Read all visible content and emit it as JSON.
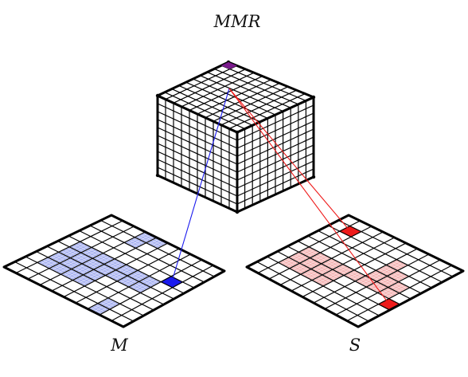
{
  "labels": {
    "top": "MMR",
    "left": "M",
    "right": "S"
  },
  "grid_size": 10,
  "colors": {
    "ink": "#000000",
    "blue": "#1a1aee",
    "blue_fill": "#a9b3f1",
    "red": "#ee1a1a",
    "red_fill": "#f4b5b5",
    "cube_marker": "#7a1a8c"
  },
  "left_plane": {
    "name": "M",
    "highlighted_cells": [
      [
        3,
        0
      ],
      [
        4,
        0
      ],
      [
        3,
        1
      ],
      [
        1,
        4
      ],
      [
        2,
        4
      ],
      [
        3,
        4
      ],
      [
        4,
        4
      ],
      [
        5,
        4
      ],
      [
        6,
        4
      ],
      [
        7,
        4
      ],
      [
        1,
        5
      ],
      [
        2,
        5
      ],
      [
        3,
        5
      ],
      [
        4,
        5
      ],
      [
        5,
        5
      ],
      [
        6,
        5
      ],
      [
        7,
        5
      ],
      [
        1,
        6
      ],
      [
        2,
        6
      ],
      [
        3,
        6
      ],
      [
        4,
        6
      ],
      [
        1,
        7
      ],
      [
        2,
        7
      ],
      [
        3,
        7
      ],
      [
        4,
        7
      ],
      [
        7,
        8
      ],
      [
        7,
        9
      ]
    ],
    "selected_cell": [
      8,
      3
    ]
  },
  "right_plane": {
    "name": "S",
    "highlighted_cells": [
      [
        6,
        2
      ],
      [
        6,
        3
      ],
      [
        7,
        3
      ],
      [
        6,
        4
      ],
      [
        7,
        4
      ],
      [
        8,
        4
      ],
      [
        1,
        5
      ],
      [
        2,
        5
      ],
      [
        3,
        5
      ],
      [
        4,
        5
      ],
      [
        5,
        5
      ],
      [
        6,
        5
      ],
      [
        7,
        5
      ],
      [
        8,
        5
      ],
      [
        1,
        6
      ],
      [
        2,
        6
      ],
      [
        3,
        6
      ],
      [
        4,
        6
      ],
      [
        1,
        7
      ],
      [
        2,
        7
      ],
      [
        3,
        7
      ],
      [
        4,
        7
      ]
    ],
    "selected_cells": [
      [
        1,
        1
      ],
      [
        9,
        6
      ]
    ]
  }
}
